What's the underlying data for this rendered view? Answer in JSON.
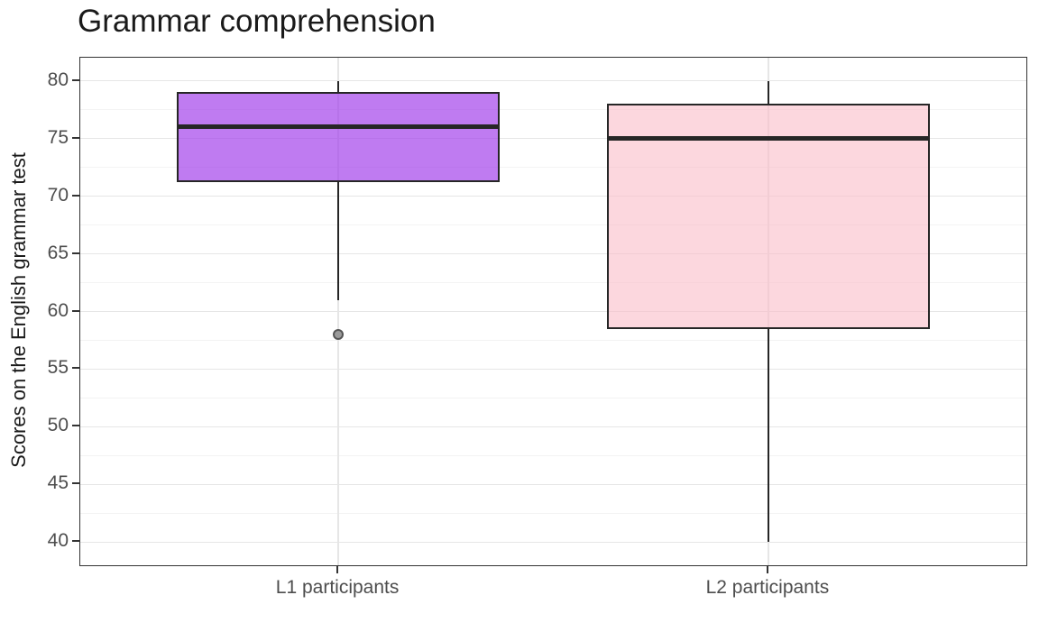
{
  "title": "Grammar comprehension",
  "colors": {
    "title_text": "#1a1a1a",
    "axis_title_text": "#1a1a1a",
    "tick_label_text": "#4d4d4d",
    "panel_border": "#333333",
    "grid_major": "#e6e6e6",
    "grid_minor": "#f3f3f3",
    "box_stroke": "#262626",
    "median_stroke": "#262626",
    "tick_mark": "#333333",
    "outlier_fill": "#9a9a9a",
    "outlier_stroke": "#555555",
    "l1_box_fill_hex": "#bc7bec",
    "l2_box_fill_hex": "#fcd7de"
  },
  "chart_data": {
    "type": "boxplot",
    "title": "Grammar comprehension",
    "xlabel": "",
    "ylabel": "Scores on the English grammar test",
    "categories": [
      "L1 participants",
      "L2 participants"
    ],
    "y_ticks": [
      80,
      75,
      70,
      65,
      60,
      55,
      50,
      45,
      40
    ],
    "y_minor_ticks": [
      77.5,
      72.5,
      67.5,
      62.5,
      57.5,
      52.5,
      47.5,
      42.5
    ],
    "ylim": [
      40,
      80
    ],
    "axis_range_expanded": [
      38,
      82
    ],
    "grid": "major-and-minor",
    "legend_position": "none",
    "box_width_fraction": 0.75,
    "series": [
      {
        "name": "L1 participants",
        "whisker_low": 61,
        "q1": 71.25,
        "median": 76,
        "q3": 79,
        "whisker_high": 80,
        "outliers": [
          58
        ],
        "fill": "rgba(160,60,235,0.68)"
      },
      {
        "name": "L2 participants",
        "whisker_low": 40,
        "q1": 58.5,
        "median": 75,
        "q3": 78,
        "whisker_high": 80,
        "outliers": [],
        "fill": "rgba(250,188,200,0.6)"
      }
    ]
  }
}
